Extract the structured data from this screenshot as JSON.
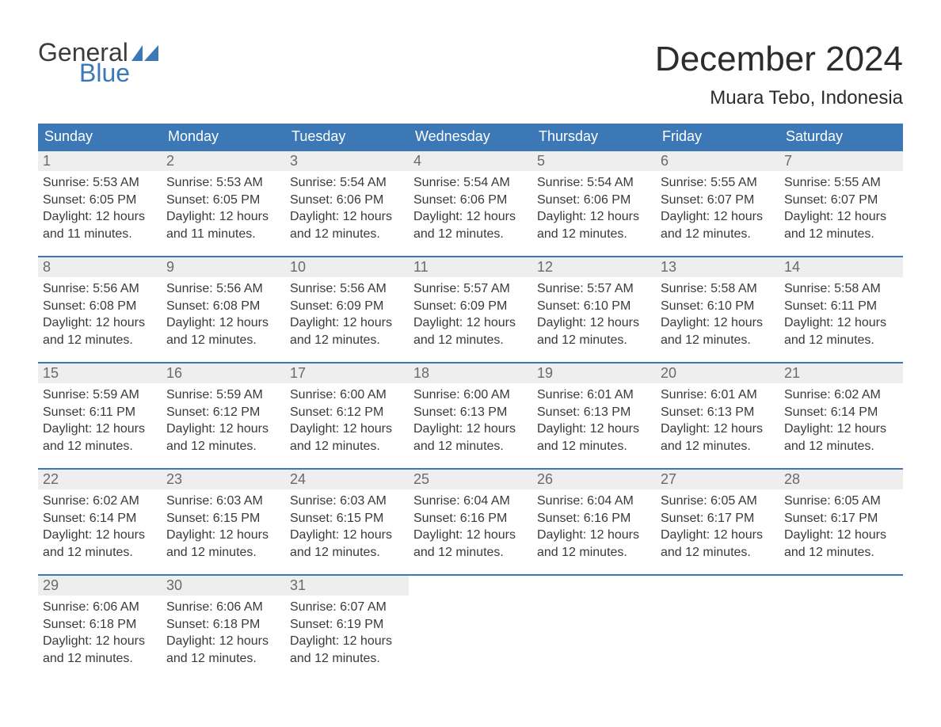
{
  "colors": {
    "accent": "#3b78b5",
    "text": "#333333",
    "muted_bg": "#eeeeee",
    "background": "#ffffff",
    "day_border": "#3b78b5",
    "header_text": "#ffffff",
    "daynum_text": "#6a6a6a"
  },
  "logo": {
    "word1": "General",
    "word2": "Blue"
  },
  "title": "December 2024",
  "subtitle": "Muara Tebo, Indonesia",
  "dow": [
    "Sunday",
    "Monday",
    "Tuesday",
    "Wednesday",
    "Thursday",
    "Friday",
    "Saturday"
  ],
  "labels": {
    "sunrise": "Sunrise:",
    "sunset": "Sunset:",
    "daylight": "Daylight:"
  },
  "days": [
    {
      "n": 1,
      "sr": "5:53 AM",
      "ss": "6:05 PM",
      "dl": "12 hours and 11 minutes."
    },
    {
      "n": 2,
      "sr": "5:53 AM",
      "ss": "6:05 PM",
      "dl": "12 hours and 11 minutes."
    },
    {
      "n": 3,
      "sr": "5:54 AM",
      "ss": "6:06 PM",
      "dl": "12 hours and 12 minutes."
    },
    {
      "n": 4,
      "sr": "5:54 AM",
      "ss": "6:06 PM",
      "dl": "12 hours and 12 minutes."
    },
    {
      "n": 5,
      "sr": "5:54 AM",
      "ss": "6:06 PM",
      "dl": "12 hours and 12 minutes."
    },
    {
      "n": 6,
      "sr": "5:55 AM",
      "ss": "6:07 PM",
      "dl": "12 hours and 12 minutes."
    },
    {
      "n": 7,
      "sr": "5:55 AM",
      "ss": "6:07 PM",
      "dl": "12 hours and 12 minutes."
    },
    {
      "n": 8,
      "sr": "5:56 AM",
      "ss": "6:08 PM",
      "dl": "12 hours and 12 minutes."
    },
    {
      "n": 9,
      "sr": "5:56 AM",
      "ss": "6:08 PM",
      "dl": "12 hours and 12 minutes."
    },
    {
      "n": 10,
      "sr": "5:56 AM",
      "ss": "6:09 PM",
      "dl": "12 hours and 12 minutes."
    },
    {
      "n": 11,
      "sr": "5:57 AM",
      "ss": "6:09 PM",
      "dl": "12 hours and 12 minutes."
    },
    {
      "n": 12,
      "sr": "5:57 AM",
      "ss": "6:10 PM",
      "dl": "12 hours and 12 minutes."
    },
    {
      "n": 13,
      "sr": "5:58 AM",
      "ss": "6:10 PM",
      "dl": "12 hours and 12 minutes."
    },
    {
      "n": 14,
      "sr": "5:58 AM",
      "ss": "6:11 PM",
      "dl": "12 hours and 12 minutes."
    },
    {
      "n": 15,
      "sr": "5:59 AM",
      "ss": "6:11 PM",
      "dl": "12 hours and 12 minutes."
    },
    {
      "n": 16,
      "sr": "5:59 AM",
      "ss": "6:12 PM",
      "dl": "12 hours and 12 minutes."
    },
    {
      "n": 17,
      "sr": "6:00 AM",
      "ss": "6:12 PM",
      "dl": "12 hours and 12 minutes."
    },
    {
      "n": 18,
      "sr": "6:00 AM",
      "ss": "6:13 PM",
      "dl": "12 hours and 12 minutes."
    },
    {
      "n": 19,
      "sr": "6:01 AM",
      "ss": "6:13 PM",
      "dl": "12 hours and 12 minutes."
    },
    {
      "n": 20,
      "sr": "6:01 AM",
      "ss": "6:13 PM",
      "dl": "12 hours and 12 minutes."
    },
    {
      "n": 21,
      "sr": "6:02 AM",
      "ss": "6:14 PM",
      "dl": "12 hours and 12 minutes."
    },
    {
      "n": 22,
      "sr": "6:02 AM",
      "ss": "6:14 PM",
      "dl": "12 hours and 12 minutes."
    },
    {
      "n": 23,
      "sr": "6:03 AM",
      "ss": "6:15 PM",
      "dl": "12 hours and 12 minutes."
    },
    {
      "n": 24,
      "sr": "6:03 AM",
      "ss": "6:15 PM",
      "dl": "12 hours and 12 minutes."
    },
    {
      "n": 25,
      "sr": "6:04 AM",
      "ss": "6:16 PM",
      "dl": "12 hours and 12 minutes."
    },
    {
      "n": 26,
      "sr": "6:04 AM",
      "ss": "6:16 PM",
      "dl": "12 hours and 12 minutes."
    },
    {
      "n": 27,
      "sr": "6:05 AM",
      "ss": "6:17 PM",
      "dl": "12 hours and 12 minutes."
    },
    {
      "n": 28,
      "sr": "6:05 AM",
      "ss": "6:17 PM",
      "dl": "12 hours and 12 minutes."
    },
    {
      "n": 29,
      "sr": "6:06 AM",
      "ss": "6:18 PM",
      "dl": "12 hours and 12 minutes."
    },
    {
      "n": 30,
      "sr": "6:06 AM",
      "ss": "6:18 PM",
      "dl": "12 hours and 12 minutes."
    },
    {
      "n": 31,
      "sr": "6:07 AM",
      "ss": "6:19 PM",
      "dl": "12 hours and 12 minutes."
    }
  ],
  "layout": {
    "type": "table",
    "columns": 7,
    "weeks": 5,
    "first_day_column": 0,
    "fontsize_title": 44,
    "fontsize_subtitle": 24,
    "fontsize_dow": 18,
    "fontsize_daynum": 18,
    "fontsize_body": 16
  }
}
